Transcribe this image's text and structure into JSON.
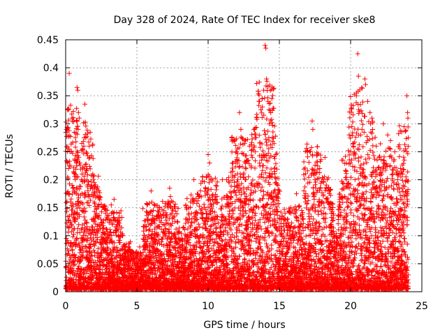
{
  "chart_data": {
    "type": "scatter",
    "title": "Day 328 of 2024, Rate Of TEC Index for receiver ske8",
    "xlabel": "GPS time / hours",
    "ylabel": "ROTI / TECUs",
    "xlim": [
      0,
      25
    ],
    "ylim": [
      0,
      0.45
    ],
    "xticks": [
      0,
      5,
      10,
      15,
      20,
      25
    ],
    "yticks": [
      0,
      0.05,
      0.1,
      0.15,
      0.2,
      0.25,
      0.3,
      0.35,
      0.4,
      0.45
    ],
    "xtick_labels": [
      "0",
      "5",
      "10",
      "15",
      "20",
      "25"
    ],
    "ytick_labels": [
      "0",
      "0.05",
      "0.1",
      "0.15",
      "0.2",
      "0.25",
      "0.3",
      "0.35",
      "0.4",
      "0.45"
    ],
    "grid": true,
    "marker": "+",
    "color": "#ff0000",
    "series": [
      {
        "name": "ROTI",
        "points": [
          [
            0.05,
            0.29
          ],
          [
            0.1,
            0.285
          ],
          [
            0.15,
            0.23
          ],
          [
            0.2,
            0.22
          ],
          [
            0.25,
            0.39
          ],
          [
            0.3,
            0.25
          ],
          [
            0.35,
            0.16
          ],
          [
            0.4,
            0.12
          ],
          [
            0.5,
            0.185
          ],
          [
            0.6,
            0.14
          ],
          [
            0.8,
            0.365
          ],
          [
            0.85,
            0.36
          ],
          [
            0.9,
            0.32
          ],
          [
            0.95,
            0.31
          ],
          [
            1.0,
            0.23
          ],
          [
            1.1,
            0.2
          ],
          [
            1.2,
            0.255
          ],
          [
            1.3,
            0.275
          ],
          [
            1.35,
            0.335
          ],
          [
            1.5,
            0.22
          ],
          [
            1.7,
            0.24
          ],
          [
            1.9,
            0.21
          ],
          [
            2.0,
            0.16
          ],
          [
            2.2,
            0.18
          ],
          [
            2.4,
            0.17
          ],
          [
            2.6,
            0.15
          ],
          [
            2.8,
            0.14
          ],
          [
            3.0,
            0.1
          ],
          [
            3.2,
            0.155
          ],
          [
            3.4,
            0.165
          ],
          [
            3.6,
            0.07
          ],
          [
            3.8,
            0.06
          ],
          [
            4.0,
            0.1
          ],
          [
            4.2,
            0.08
          ],
          [
            4.4,
            0.06
          ],
          [
            4.8,
            0.05
          ],
          [
            5.2,
            0.08
          ],
          [
            5.6,
            0.06
          ],
          [
            6.0,
            0.18
          ],
          [
            6.05,
            0.16
          ],
          [
            6.3,
            0.07
          ],
          [
            6.6,
            0.06
          ],
          [
            7.0,
            0.04
          ],
          [
            7.3,
            0.185
          ],
          [
            7.35,
            0.17
          ],
          [
            7.5,
            0.08
          ],
          [
            8.0,
            0.06
          ],
          [
            8.5,
            0.13
          ],
          [
            9.0,
            0.2
          ],
          [
            9.2,
            0.11
          ],
          [
            9.5,
            0.1
          ],
          [
            10.0,
            0.245
          ],
          [
            10.1,
            0.23
          ],
          [
            10.5,
            0.13
          ],
          [
            11.0,
            0.2
          ],
          [
            11.3,
            0.2
          ],
          [
            11.6,
            0.17
          ],
          [
            12.0,
            0.25
          ],
          [
            12.2,
            0.32
          ],
          [
            12.3,
            0.29
          ],
          [
            12.6,
            0.2
          ],
          [
            12.9,
            0.26
          ],
          [
            13.1,
            0.24
          ],
          [
            13.3,
            0.25
          ],
          [
            13.6,
            0.34
          ],
          [
            13.8,
            0.33
          ],
          [
            13.9,
            0.36
          ],
          [
            14.0,
            0.44
          ],
          [
            14.05,
            0.435
          ],
          [
            14.1,
            0.38
          ],
          [
            14.2,
            0.34
          ],
          [
            14.3,
            0.3
          ],
          [
            14.5,
            0.21
          ],
          [
            14.8,
            0.17
          ],
          [
            15.0,
            0.13
          ],
          [
            15.4,
            0.14
          ],
          [
            15.8,
            0.15
          ],
          [
            16.2,
            0.175
          ],
          [
            16.6,
            0.13
          ],
          [
            17.0,
            0.12
          ],
          [
            17.3,
            0.305
          ],
          [
            17.35,
            0.29
          ],
          [
            17.5,
            0.2
          ],
          [
            17.8,
            0.16
          ],
          [
            18.2,
            0.24
          ],
          [
            18.6,
            0.12
          ],
          [
            19.0,
            0.1
          ],
          [
            19.4,
            0.11
          ],
          [
            19.7,
            0.2
          ],
          [
            19.9,
            0.28
          ],
          [
            20.2,
            0.26
          ],
          [
            20.4,
            0.35
          ],
          [
            20.5,
            0.425
          ],
          [
            20.55,
            0.385
          ],
          [
            20.8,
            0.29
          ],
          [
            21.0,
            0.38
          ],
          [
            21.05,
            0.37
          ],
          [
            21.2,
            0.34
          ],
          [
            21.5,
            0.31
          ],
          [
            21.8,
            0.26
          ],
          [
            22.0,
            0.24
          ],
          [
            22.3,
            0.3
          ],
          [
            22.6,
            0.28
          ],
          [
            22.8,
            0.27
          ],
          [
            23.1,
            0.25
          ],
          [
            23.3,
            0.2
          ],
          [
            23.5,
            0.22
          ],
          [
            23.8,
            0.15
          ],
          [
            23.95,
            0.35
          ],
          [
            24.0,
            0.32
          ],
          [
            24.02,
            0.31
          ],
          [
            24.05,
            0.275
          ]
        ]
      }
    ]
  }
}
